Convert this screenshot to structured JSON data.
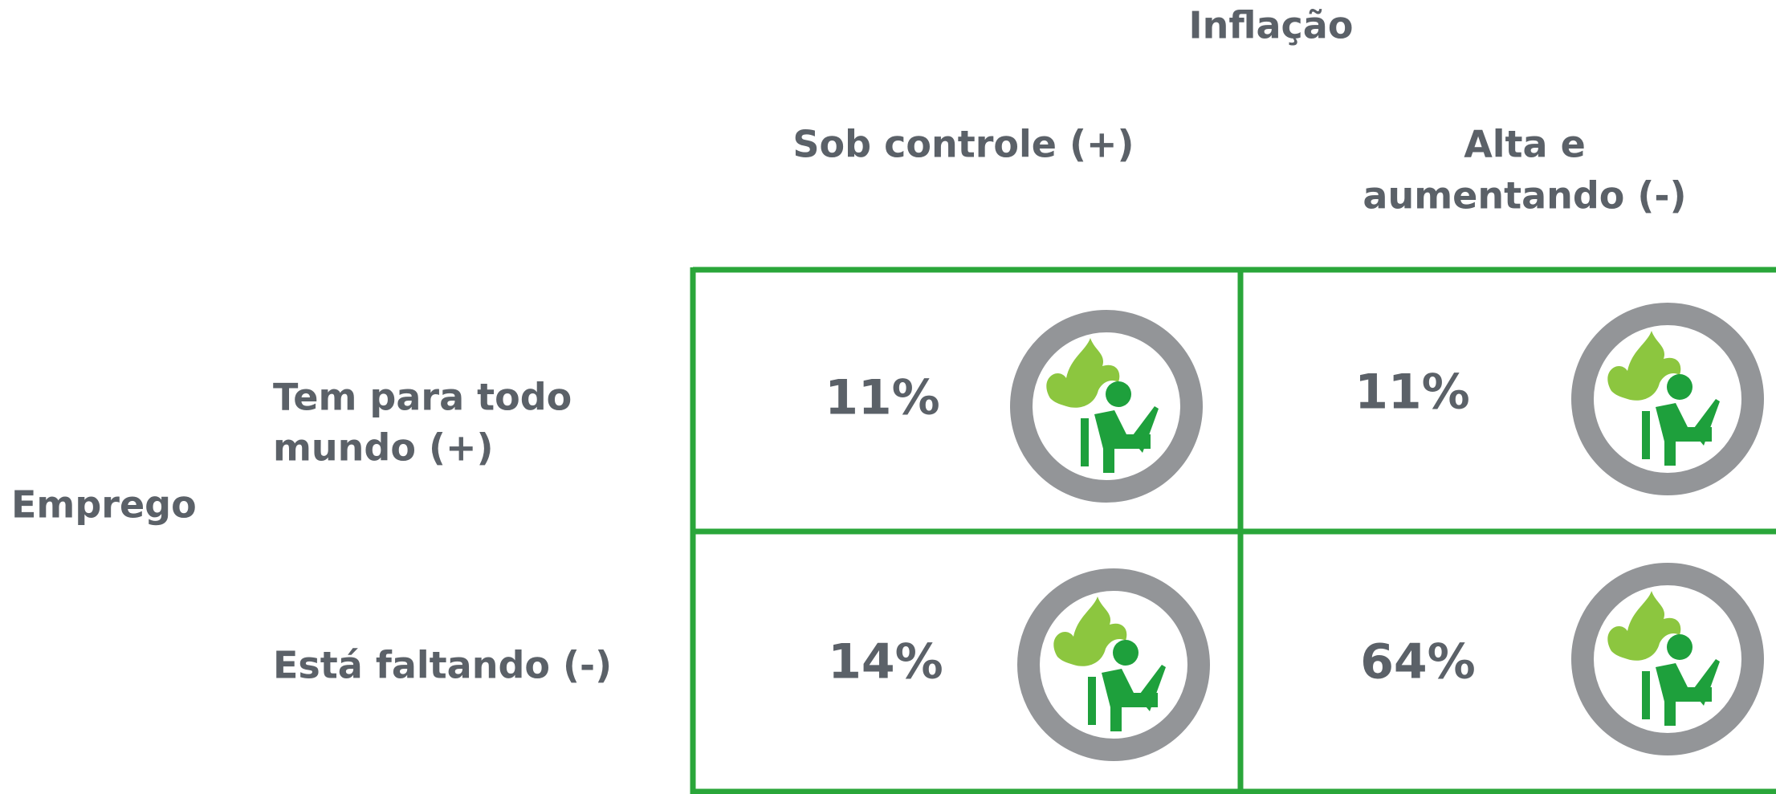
{
  "title": "Inflação",
  "columns": [
    "Sob controle (+)",
    [
      "Alta e",
      "aumentando (-)"
    ]
  ],
  "row_title": "Emprego",
  "rows": [
    [
      "Tem para todo",
      "mundo (+)"
    ],
    [
      "Está faltando (-)"
    ]
  ],
  "cells": [
    [
      "11%",
      "11%"
    ],
    [
      "14%",
      "64%"
    ]
  ]
}
